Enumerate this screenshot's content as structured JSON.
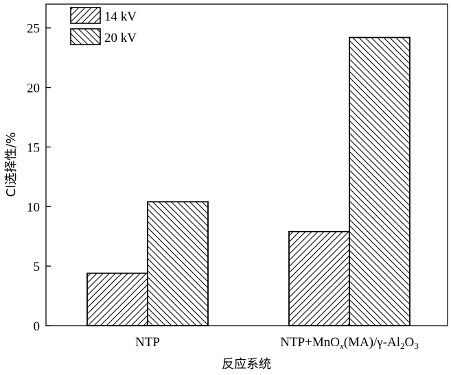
{
  "chart_data": {
    "type": "bar",
    "categories": [
      "NTP",
      "NTP+MnO(MA)/γ-AlO"
    ],
    "category_label_parts": [
      [
        {
          "t": "NTP",
          "s": "normal"
        }
      ],
      [
        {
          "t": "NTP+MnO",
          "s": "normal"
        },
        {
          "t": "x",
          "s": "sub-italic"
        },
        {
          "t": "(MA)/γ-Al",
          "s": "normal"
        },
        {
          "t": "2",
          "s": "sub"
        },
        {
          "t": "O",
          "s": "normal"
        },
        {
          "t": "3",
          "s": "sub"
        }
      ]
    ],
    "series": [
      {
        "name": "14 kV",
        "values": [
          4.4,
          7.9
        ],
        "hatch": "forward"
      },
      {
        "name": "20 kV",
        "values": [
          10.4,
          24.2
        ],
        "hatch": "backward"
      }
    ],
    "xlabel": "反应系统",
    "ylabel": "Cl选择性/%",
    "ylim": [
      0,
      27
    ],
    "yticks": [
      0,
      5,
      10,
      15,
      20,
      25
    ],
    "grid": false,
    "legend_position": "top-left"
  }
}
